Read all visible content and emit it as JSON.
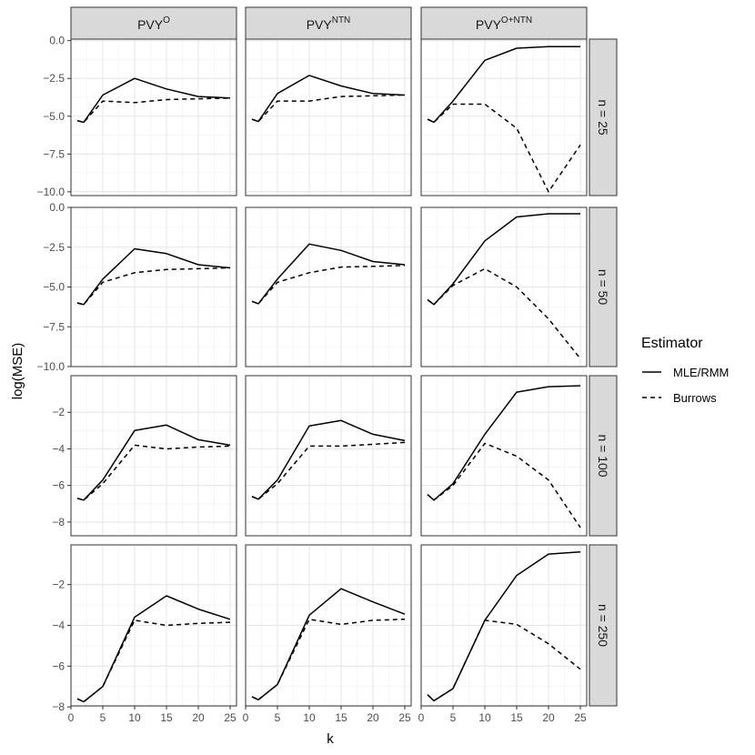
{
  "chart_data": {
    "type": "line",
    "xlabel": "k",
    "ylabel": "log(MSE)",
    "x": [
      1,
      2,
      5,
      10,
      15,
      20,
      25
    ],
    "x_ticks": [
      0,
      5,
      10,
      15,
      20,
      25
    ],
    "xlim": [
      0,
      26
    ],
    "columns": [
      {
        "base": "PVY",
        "sup": "O"
      },
      {
        "base": "PVY",
        "sup": "NTN"
      },
      {
        "base": "PVY",
        "sup": "O+NTN"
      }
    ],
    "rows": [
      {
        "label": "n = 25",
        "ylim": [
          -10.25,
          0.1
        ],
        "y_ticks": [
          0,
          -2.5,
          -5,
          -7.5,
          -10
        ],
        "y_tick_labels": [
          "0.0",
          "−2.5",
          "−5.0",
          "−7.5",
          "−10.0"
        ]
      },
      {
        "label": "n = 50",
        "ylim": [
          -10.0,
          0.0
        ],
        "y_ticks": [
          0,
          -2.5,
          -5,
          -7.5,
          -10
        ],
        "y_tick_labels": [
          "0.0",
          "−2.5",
          "−5.0",
          "−7.5",
          "−10.0"
        ]
      },
      {
        "label": "n = 100",
        "ylim": [
          -8.75,
          0.0
        ],
        "y_ticks": [
          -2,
          -4,
          -6,
          -8
        ],
        "y_tick_labels": [
          "−2",
          "−4",
          "−6",
          "−8"
        ]
      },
      {
        "label": "n = 250",
        "ylim": [
          -7.95,
          -0.05
        ],
        "y_ticks": [
          -2,
          -4,
          -6,
          -8
        ],
        "y_tick_labels": [
          "−2",
          "−4",
          "−6",
          "−8"
        ]
      }
    ],
    "legend": {
      "title": "Estimator",
      "entries": [
        {
          "name": "MLE/RMM",
          "dash": "solid"
        },
        {
          "name": "Burrows",
          "dash": "dashed"
        }
      ],
      "position": "right"
    },
    "grid": true,
    "panels": [
      [
        {
          "MLE/RMM": [
            -5.3,
            -5.4,
            -3.6,
            -2.5,
            -3.2,
            -3.7,
            -3.8
          ],
          "Burrows": [
            -5.3,
            -5.4,
            -4.0,
            -4.1,
            -3.9,
            -3.85,
            -3.8
          ]
        },
        {
          "MLE/RMM": [
            -5.2,
            -5.35,
            -3.5,
            -2.3,
            -3.0,
            -3.5,
            -3.6
          ],
          "Burrows": [
            -5.2,
            -5.35,
            -4.0,
            -4.0,
            -3.7,
            -3.65,
            -3.6
          ]
        },
        {
          "MLE/RMM": [
            -5.2,
            -5.4,
            -4.0,
            -1.3,
            -0.5,
            -0.4,
            -0.4
          ],
          "Burrows": [
            -5.2,
            -5.4,
            -4.2,
            -4.2,
            -5.8,
            -10.0,
            -6.9
          ]
        }
      ],
      [
        {
          "MLE/RMM": [
            -6.0,
            -6.1,
            -4.5,
            -2.6,
            -2.9,
            -3.6,
            -3.8
          ],
          "Burrows": [
            -6.0,
            -6.1,
            -4.7,
            -4.1,
            -3.9,
            -3.85,
            -3.8
          ]
        },
        {
          "MLE/RMM": [
            -5.9,
            -6.05,
            -4.5,
            -2.3,
            -2.7,
            -3.4,
            -3.6
          ],
          "Burrows": [
            -5.9,
            -6.05,
            -4.7,
            -4.1,
            -3.75,
            -3.7,
            -3.65
          ]
        },
        {
          "MLE/RMM": [
            -5.8,
            -6.1,
            -4.8,
            -2.1,
            -0.6,
            -0.4,
            -0.4
          ],
          "Burrows": [
            -5.8,
            -6.1,
            -4.9,
            -3.85,
            -5.0,
            -7.0,
            -9.5
          ]
        }
      ],
      [
        {
          "MLE/RMM": [
            -6.7,
            -6.8,
            -5.7,
            -3.0,
            -2.7,
            -3.5,
            -3.8
          ],
          "Burrows": [
            -6.7,
            -6.8,
            -5.9,
            -3.8,
            -4.0,
            -3.9,
            -3.85
          ]
        },
        {
          "MLE/RMM": [
            -6.6,
            -6.75,
            -5.7,
            -2.75,
            -2.45,
            -3.2,
            -3.55
          ],
          "Burrows": [
            -6.6,
            -6.75,
            -5.9,
            -3.85,
            -3.85,
            -3.75,
            -3.65
          ]
        },
        {
          "MLE/RMM": [
            -6.5,
            -6.8,
            -5.9,
            -3.2,
            -0.9,
            -0.6,
            -0.55
          ],
          "Burrows": [
            -6.5,
            -6.8,
            -6.0,
            -3.7,
            -4.4,
            -5.7,
            -8.3
          ]
        }
      ],
      [
        {
          "MLE/RMM": [
            -7.6,
            -7.75,
            -7.0,
            -3.6,
            -2.55,
            -3.2,
            -3.7
          ],
          "Burrows": [
            -7.6,
            -7.75,
            -7.0,
            -3.75,
            -4.0,
            -3.9,
            -3.85
          ]
        },
        {
          "MLE/RMM": [
            -7.5,
            -7.65,
            -6.9,
            -3.5,
            -2.2,
            -2.85,
            -3.45
          ],
          "Burrows": [
            -7.5,
            -7.65,
            -6.9,
            -3.7,
            -3.95,
            -3.75,
            -3.7
          ]
        },
        {
          "MLE/RMM": [
            -7.4,
            -7.7,
            -7.1,
            -3.75,
            -1.55,
            -0.5,
            -0.4
          ],
          "Burrows": [
            -7.4,
            -7.7,
            -7.1,
            -3.75,
            -3.95,
            -4.9,
            -6.15
          ]
        }
      ]
    ]
  }
}
